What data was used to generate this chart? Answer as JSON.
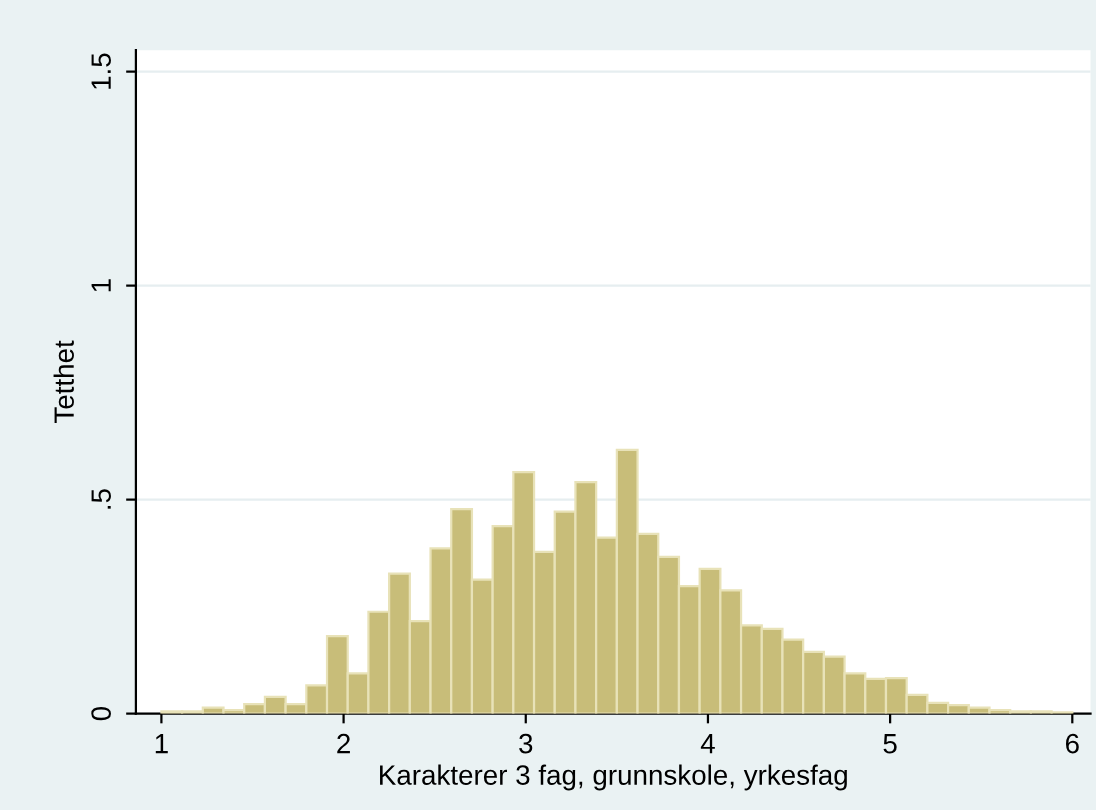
{
  "chart_data": {
    "type": "histogram",
    "xlabel": "Karakterer 3 fag, grunnskole, yrkesfag",
    "ylabel": "Tetthet",
    "bins": [
      1,
      1.1136,
      1.2273,
      1.3409,
      1.4545,
      1.5682,
      1.6818,
      1.7955,
      1.9091,
      2.0227,
      2.1364,
      2.25,
      2.3636,
      2.4773,
      2.5909,
      2.7045,
      2.8182,
      2.9318,
      3.0455,
      3.1591,
      3.2727,
      3.3864,
      3.5,
      3.6136,
      3.7273,
      3.8409,
      3.9545,
      4.0682,
      4.1818,
      4.2955,
      4.4091,
      4.5227,
      4.6364,
      4.75,
      4.8636,
      4.9773,
      5.0909,
      5.2045,
      5.3182,
      5.4318,
      5.5455,
      5.6591,
      5.7727,
      5.8864,
      6
    ],
    "values": [
      0.005,
      0.005,
      0.014,
      0.008,
      0.022,
      0.039,
      0.022,
      0.066,
      0.181,
      0.094,
      0.238,
      0.327,
      0.216,
      0.386,
      0.478,
      0.313,
      0.438,
      0.564,
      0.378,
      0.472,
      0.541,
      0.411,
      0.616,
      0.42,
      0.366,
      0.298,
      0.338,
      0.288,
      0.206,
      0.198,
      0.173,
      0.144,
      0.133,
      0.094,
      0.081,
      0.083,
      0.044,
      0.025,
      0.02,
      0.014,
      0.008,
      0.005,
      0.005,
      0.003
    ],
    "color": "#c8bd79",
    "xlim": [
      0.86,
      6.1
    ],
    "ylim": [
      0,
      1.55
    ],
    "xticks": [
      1,
      2,
      3,
      4,
      5,
      6
    ],
    "yticks": [
      0,
      {
        "value": 0.5,
        "label": ".5"
      },
      1,
      1.5
    ],
    "grid": "y"
  }
}
